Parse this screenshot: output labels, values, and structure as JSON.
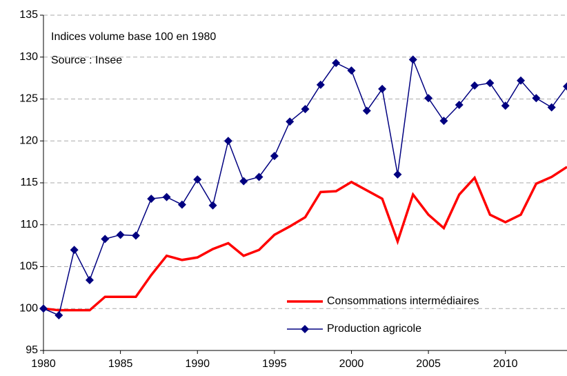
{
  "chart_data": {
    "type": "line",
    "annotations": [
      "Indices volume base 100 en 1980",
      "Source : Insee"
    ],
    "x": [
      1980,
      1981,
      1982,
      1983,
      1984,
      1985,
      1986,
      1987,
      1988,
      1989,
      1990,
      1991,
      1992,
      1993,
      1994,
      1995,
      1996,
      1997,
      1998,
      1999,
      2000,
      2001,
      2002,
      2003,
      2004,
      2005,
      2006,
      2007,
      2008,
      2009,
      2010,
      2011,
      2012,
      2013,
      2014
    ],
    "series": [
      {
        "name": "Consommations intermédiaires",
        "color": "#ff0000",
        "marker": false,
        "values": [
          100,
          99.8,
          99.8,
          99.8,
          101.4,
          101.4,
          101.4,
          104,
          106.3,
          105.8,
          106.1,
          107.1,
          107.8,
          106.3,
          107,
          108.8,
          109.8,
          110.9,
          113.9,
          114,
          115.1,
          114.1,
          113.1,
          108,
          113.6,
          111.2,
          109.6,
          113.6,
          115.6,
          111.2,
          110.3,
          111.2,
          114.9,
          115.7,
          116.9
        ]
      },
      {
        "name": "Production agricole",
        "color": "#000080",
        "marker": true,
        "values": [
          100,
          99.2,
          107,
          103.4,
          108.3,
          108.8,
          108.7,
          113.1,
          113.3,
          112.4,
          115.4,
          112.3,
          120,
          115.2,
          115.7,
          118.2,
          122.3,
          123.8,
          126.7,
          129.3,
          128.4,
          123.6,
          126.2,
          116,
          129.7,
          125.1,
          122.4,
          124.3,
          126.6,
          126.9,
          124.2,
          127.2,
          125.1,
          124,
          126.5
        ]
      }
    ],
    "xlim": [
      1980,
      2014
    ],
    "xticks": [
      1980,
      1985,
      1990,
      1995,
      2000,
      2005,
      2010
    ],
    "ylim": [
      95,
      135
    ],
    "yticks": [
      95,
      100,
      105,
      110,
      115,
      120,
      125,
      130,
      135
    ],
    "grid": true,
    "legend": "lower right"
  }
}
